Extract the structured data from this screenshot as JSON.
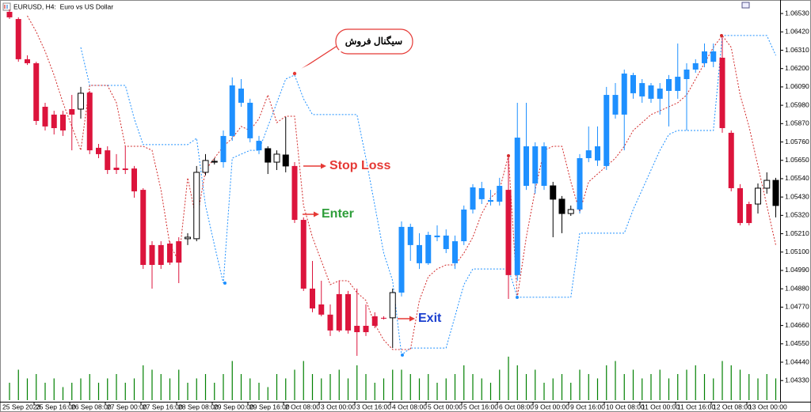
{
  "chart_data": {
    "type": "candlestick",
    "title": "EURUSD, H4:  Euro vs US Dollar",
    "categories": [
      "25 Sep 2023",
      null,
      null,
      null,
      "25 Sep 16:00",
      null,
      null,
      null,
      "26 Sep 08:00",
      null,
      null,
      null,
      "27 Sep 00:00",
      null,
      null,
      null,
      "27 Sep 16:00",
      null,
      null,
      null,
      "28 Sep 08:00",
      null,
      null,
      null,
      "29 Sep 00:00",
      null,
      null,
      null,
      "29 Sep 16:00",
      null,
      null,
      null,
      "2 Oct 08:00",
      null,
      null,
      null,
      "3 Oct 00:00",
      null,
      null,
      null,
      "3 Oct 16:00",
      null,
      null,
      null,
      "4 Oct 08:00",
      null,
      null,
      null,
      "5 Oct 00:00",
      null,
      null,
      null,
      "5 Oct 16:00",
      null,
      null,
      null,
      "6 Oct 08:00",
      null,
      null,
      null,
      "9 Oct 00:00",
      null,
      null,
      null,
      "9 Oct 16:00",
      null,
      null,
      null,
      "10 Oct 08:00",
      null,
      null,
      null,
      "11 Oct 00:00",
      null,
      null,
      null,
      "11 Oct 16:00",
      null,
      null,
      null,
      "12 Oct 08:00",
      null,
      null,
      null,
      "13 Oct 00:00",
      null,
      null
    ],
    "ohlc": [
      [
        1.0654,
        1.06554,
        1.06497,
        1.06507
      ],
      [
        1.06497,
        1.06507,
        1.06241,
        1.06256
      ],
      [
        1.06256,
        1.06279,
        1.06222,
        1.06232
      ],
      [
        1.06232,
        1.06241,
        1.05862,
        1.05886
      ],
      [
        1.05971,
        1.05995,
        1.05829,
        1.05853
      ],
      [
        1.05924,
        1.05947,
        1.05805,
        1.05843
      ],
      [
        1.05924,
        1.05947,
        1.05796,
        1.05829
      ],
      [
        1.05957,
        1.06042,
        1.0571,
        1.05924
      ],
      [
        1.05957,
        1.0609,
        1.059,
        1.06052
      ],
      [
        1.06056,
        1.06066,
        1.05687,
        1.0571
      ],
      [
        1.05725,
        1.05748,
        1.05663,
        1.05687
      ],
      [
        1.0571,
        1.05734,
        1.05568,
        1.05592
      ],
      [
        1.05606,
        1.05687,
        1.05568,
        1.05592
      ],
      [
        1.05601,
        1.05734,
        1.05568,
        1.05592
      ],
      [
        1.05601,
        1.05616,
        1.05426,
        1.05464
      ],
      [
        1.05473,
        1.05483,
        1.04999,
        1.05023
      ],
      [
        1.05142,
        1.05165,
        1.04881,
        1.05023
      ],
      [
        1.05142,
        1.05165,
        1.04999,
        1.05023
      ],
      [
        1.05151,
        1.05165,
        1.05023,
        1.05037
      ],
      [
        1.05165,
        1.05189,
        1.04914,
        1.05037
      ],
      [
        1.0518,
        1.05213,
        1.05142,
        1.05189
      ],
      [
        1.0518,
        1.05616,
        1.05165,
        1.05578
      ],
      [
        1.05578,
        1.05687,
        1.05559,
        1.05649
      ],
      [
        1.05644,
        1.05663,
        1.05625,
        1.05639
      ],
      [
        1.05639,
        1.05829,
        1.05606,
        1.05796
      ],
      [
        1.05796,
        1.06147,
        1.05767,
        1.06099
      ],
      [
        1.05995,
        1.06137,
        1.05971,
        1.0608
      ],
      [
        1.05782,
        1.06019,
        1.05758,
        1.05995
      ],
      [
        1.0571,
        1.05796,
        1.05687,
        1.05767
      ],
      [
        1.0572,
        1.05734,
        1.05568,
        1.05639
      ],
      [
        1.05639,
        1.0571,
        1.05592,
        1.05687
      ],
      [
        1.05682,
        1.0591,
        1.05578,
        1.05616
      ],
      [
        1.05616,
        1.05639,
        1.05274,
        1.05293
      ],
      [
        1.05293,
        1.05308,
        1.04867,
        1.04881
      ],
      [
        1.04881,
        1.05047,
        1.04739,
        1.04762
      ],
      [
        1.04786,
        1.04928,
        1.04715,
        1.04725
      ],
      [
        1.04725,
        1.04786,
        1.04597,
        1.0463
      ],
      [
        1.04848,
        1.04928,
        1.0462,
        1.0463
      ],
      [
        1.04848,
        1.04867,
        1.04611,
        1.0463
      ],
      [
        1.04658,
        1.04881,
        1.04478,
        1.0462
      ],
      [
        1.04658,
        1.04786,
        1.04597,
        1.0462
      ],
      [
        1.04715,
        1.04739,
        1.04644,
        1.04658
      ],
      [
        1.04706,
        1.04715,
        1.04696,
        1.04701
      ],
      [
        1.04706,
        1.04881,
        1.04525,
        1.04857
      ],
      [
        1.04857,
        1.05284,
        1.04834,
        1.05251
      ],
      [
        1.05142,
        1.0527,
        1.05047,
        1.05251
      ],
      [
        1.05033,
        1.05213,
        1.04999,
        1.05142
      ],
      [
        1.05033,
        1.05222,
        1.05023,
        1.05203
      ],
      [
        1.05189,
        1.0526,
        1.05165,
        1.05199
      ],
      [
        1.05118,
        1.05236,
        1.05094,
        1.05199
      ],
      [
        1.05033,
        1.05199,
        1.04999,
        1.05165
      ],
      [
        1.05165,
        1.05379,
        1.05142,
        1.05355
      ],
      [
        1.05355,
        1.05507,
        1.05331,
        1.05488
      ],
      [
        1.05417,
        1.05521,
        1.05388,
        1.05483
      ],
      [
        1.05402,
        1.05473,
        1.05379,
        1.05412
      ],
      [
        1.05402,
        1.05545,
        1.05379,
        1.05497
      ],
      [
        1.05473,
        1.05687,
        1.04819,
        1.04962
      ],
      [
        1.04962,
        1.05995,
        1.04928,
        1.05786
      ],
      [
        1.05497,
        1.05995,
        1.05473,
        1.05734
      ],
      [
        1.05511,
        1.05758,
        1.0545,
        1.05734
      ],
      [
        1.05497,
        1.05758,
        1.05473,
        1.05734
      ],
      [
        1.05497,
        1.05521,
        1.05189,
        1.05417
      ],
      [
        1.05417,
        1.05436,
        1.05213,
        1.05331
      ],
      [
        1.05331,
        1.05379,
        1.05317,
        1.05355
      ],
      [
        1.05355,
        1.05687,
        1.05331,
        1.05663
      ],
      [
        1.05663,
        1.05853,
        1.05639,
        1.0571
      ],
      [
        1.05649,
        1.05853,
        1.05616,
        1.05734
      ],
      [
        1.05616,
        1.0609,
        1.05592,
        1.06042
      ],
      [
        1.05924,
        1.06113,
        1.059,
        1.06042
      ],
      [
        1.05924,
        1.06194,
        1.0571,
        1.0617
      ],
      [
        1.06052,
        1.06175,
        1.06019,
        1.06161
      ],
      [
        1.06033,
        1.06137,
        1.05995,
        1.06113
      ],
      [
        1.06019,
        1.06113,
        1.05995,
        1.06099
      ],
      [
        1.06019,
        1.06113,
        1.05924,
        1.0608
      ],
      [
        1.06066,
        1.06161,
        1.05853,
        1.06137
      ],
      [
        1.06066,
        1.0635,
        1.06019,
        1.06151
      ],
      [
        1.06137,
        1.06232,
        1.05829,
        1.06194
      ],
      [
        1.06194,
        1.06256,
        1.06175,
        1.06232
      ],
      [
        1.06232,
        1.0635,
        1.06208,
        1.06303
      ],
      [
        1.06241,
        1.0635,
        1.06208,
        1.06303
      ],
      [
        1.06265,
        1.06398,
        1.05815,
        1.05843
      ],
      [
        1.05815,
        1.05829,
        1.05464,
        1.05483
      ],
      [
        1.05483,
        1.05507,
        1.0526,
        1.05274
      ],
      [
        1.05388,
        1.05402,
        1.0526,
        1.05274
      ],
      [
        1.05388,
        1.05511,
        1.05331,
        1.05483
      ],
      [
        1.05483,
        1.05578,
        1.0545,
        1.0553
      ],
      [
        1.0553,
        1.05545,
        1.05308,
        1.05379
      ]
    ],
    "candle_colors": [
      "#dc143c",
      "#dc143c",
      "#dc143c",
      "#dc143c",
      "#dc143c",
      "#dc143c",
      "#dc143c",
      "#dc143c",
      "#ffffff",
      "#dc143c",
      "#dc143c",
      "#dc143c",
      "#dc143c",
      "#dc143c",
      "#dc143c",
      "#dc143c",
      "#dc143c",
      "#dc143c",
      "#dc143c",
      "#dc143c",
      "#ffffff",
      "#ffffff",
      "#ffffff",
      "#000000",
      "#1e90ff",
      "#1e90ff",
      "#1e90ff",
      "#1e90ff",
      "#1e90ff",
      "#000000",
      "#ffffff",
      "#000000",
      "#dc143c",
      "#dc143c",
      "#dc143c",
      "#dc143c",
      "#dc143c",
      "#dc143c",
      "#dc143c",
      "#dc143c",
      "#dc143c",
      "#dc143c",
      "#dc143c",
      "#ffffff",
      "#1e90ff",
      "#1e90ff",
      "#1e90ff",
      "#1e90ff",
      "#1e90ff",
      "#1e90ff",
      "#1e90ff",
      "#1e90ff",
      "#1e90ff",
      "#1e90ff",
      "#1e90ff",
      "#1e90ff",
      "#dc143c",
      "#1e90ff",
      "#1e90ff",
      "#1e90ff",
      "#1e90ff",
      "#000000",
      "#000000",
      "#ffffff",
      "#1e90ff",
      "#1e90ff",
      "#1e90ff",
      "#1e90ff",
      "#1e90ff",
      "#1e90ff",
      "#1e90ff",
      "#1e90ff",
      "#1e90ff",
      "#1e90ff",
      "#1e90ff",
      "#1e90ff",
      "#1e90ff",
      "#1e90ff",
      "#1e90ff",
      "#1e90ff",
      "#dc143c",
      "#dc143c",
      "#dc143c",
      "#dc143c",
      "#ffffff",
      "#ffffff",
      "#000000"
    ],
    "series": [
      {
        "color": "#1e90ff",
        "values": [
          null,
          null,
          null,
          null,
          null,
          null,
          null,
          null,
          1.06327,
          1.06099,
          1.06099,
          1.06099,
          1.06099,
          1.06099,
          1.059,
          1.05744,
          1.05744,
          1.05744,
          1.05744,
          1.05744,
          1.05744,
          1.05782,
          1.05379,
          1.05142,
          1.04914,
          1.05663,
          1.05687,
          1.0571,
          1.0571,
          1.05853,
          1.05995,
          1.06137,
          1.06161,
          1.06019,
          1.05924,
          1.05924,
          1.05924,
          1.05924,
          1.05924,
          1.05924,
          1.05663,
          1.05379,
          1.05094,
          1.04928,
          1.04483,
          1.04525,
          1.04525,
          1.04525,
          1.04525,
          1.04525,
          1.04715,
          1.04905,
          1.04999,
          1.04999,
          1.04999,
          1.04999,
          1.04999,
          1.04829,
          1.04829,
          1.04829,
          1.04829,
          1.04829,
          1.04829,
          1.04829,
          1.05213,
          1.05213,
          1.05213,
          1.05213,
          1.05213,
          1.05213,
          1.05355,
          1.05473,
          1.05592,
          1.0571,
          1.05805,
          1.05829,
          1.05829,
          1.05829,
          1.05829,
          1.05829,
          1.06398,
          1.06398,
          1.06398,
          1.06398,
          1.06398,
          1.06398,
          1.06279
        ]
      },
      {
        "color": "#d22b2b",
        "values": [
          null,
          null,
          1.06516,
          1.06421,
          1.06303,
          1.06161,
          1.05995,
          1.05853,
          1.0571,
          1.06099,
          1.06099,
          1.06099,
          1.05995,
          1.05734,
          1.05734,
          1.05734,
          1.0571,
          1.05473,
          1.05142,
          1.05047,
          1.05545,
          1.05284,
          1.05592,
          1.05663,
          1.05734,
          1.05782,
          1.05853,
          1.05829,
          1.059,
          1.06042,
          1.05876,
          1.05914,
          1.05914,
          1.05379,
          1.05189,
          1.05047,
          1.04905,
          1.04928,
          1.04928,
          1.04857,
          1.0481,
          1.04668,
          1.04573,
          1.04516,
          1.04516,
          1.04516,
          1.0481,
          1.04952,
          1.04999,
          1.05023,
          1.05023,
          1.05094,
          1.05189,
          1.05331,
          1.05426,
          1.05473,
          1.05677,
          1.04829,
          1.05189,
          1.05473,
          1.0571,
          1.05734,
          1.05734,
          1.05521,
          1.05341,
          1.05521,
          1.05568,
          1.05616,
          1.05663,
          1.05734,
          1.05829,
          1.05876,
          1.05924,
          1.05947,
          1.05971,
          1.05995,
          1.06042,
          1.06137,
          1.06232,
          1.06327,
          1.06398,
          1.06327,
          1.06042,
          1.05853,
          1.05616,
          1.05379,
          1.05142
        ]
      }
    ],
    "volumes": [
      20,
      35,
      25,
      30,
      20,
      25,
      15,
      20,
      25,
      30,
      20,
      25,
      30,
      20,
      25,
      40,
      35,
      30,
      25,
      35,
      20,
      25,
      30,
      20,
      30,
      45,
      30,
      25,
      20,
      15,
      30,
      25,
      35,
      45,
      30,
      25,
      30,
      35,
      25,
      40,
      30,
      20,
      25,
      35,
      35,
      30,
      25,
      30,
      20,
      25,
      30,
      40,
      30,
      25,
      20,
      35,
      50,
      40,
      30,
      35,
      20,
      25,
      30,
      20,
      35,
      30,
      25,
      40,
      45,
      30,
      35,
      25,
      30,
      35,
      25,
      30,
      35,
      40,
      30,
      25,
      45,
      40,
      35,
      30,
      25,
      30,
      25
    ],
    "volume_color": "#008000",
    "ylim": [
      1.04203,
      1.06611
    ],
    "yticks": [
      {
        "value": 1.0653,
        "label": "1.06530"
      },
      {
        "value": 1.0642,
        "label": "1.06420"
      },
      {
        "value": 1.0631,
        "label": "1.06310"
      },
      {
        "value": 1.062,
        "label": "1.06200"
      },
      {
        "value": 1.0609,
        "label": "1.06090"
      },
      {
        "value": 1.0598,
        "label": "1.05980"
      },
      {
        "value": 1.0587,
        "label": "1.05870"
      },
      {
        "value": 1.0576,
        "label": "1.05760"
      },
      {
        "value": 1.0565,
        "label": "1.05650"
      },
      {
        "value": 1.0554,
        "label": "1.05540"
      },
      {
        "value": 1.0543,
        "label": "1.05430"
      },
      {
        "value": 1.0532,
        "label": "1.05320"
      },
      {
        "value": 1.0521,
        "label": "1.05210"
      },
      {
        "value": 1.051,
        "label": "1.05100"
      },
      {
        "value": 1.0499,
        "label": "1.04990"
      },
      {
        "value": 1.0488,
        "label": "1.04880"
      },
      {
        "value": 1.0477,
        "label": "1.04770"
      },
      {
        "value": 1.0466,
        "label": "1.04660"
      },
      {
        "value": 1.0455,
        "label": "1.04550"
      },
      {
        "value": 1.0444,
        "label": "1.04440"
      },
      {
        "value": 1.0433,
        "label": "1.04330"
      }
    ],
    "grid": false,
    "annotations": {
      "sell_signal": "سیگنال فروش",
      "stop_loss": "Stop Loss",
      "enter": "Enter",
      "exit": "Exit"
    }
  }
}
